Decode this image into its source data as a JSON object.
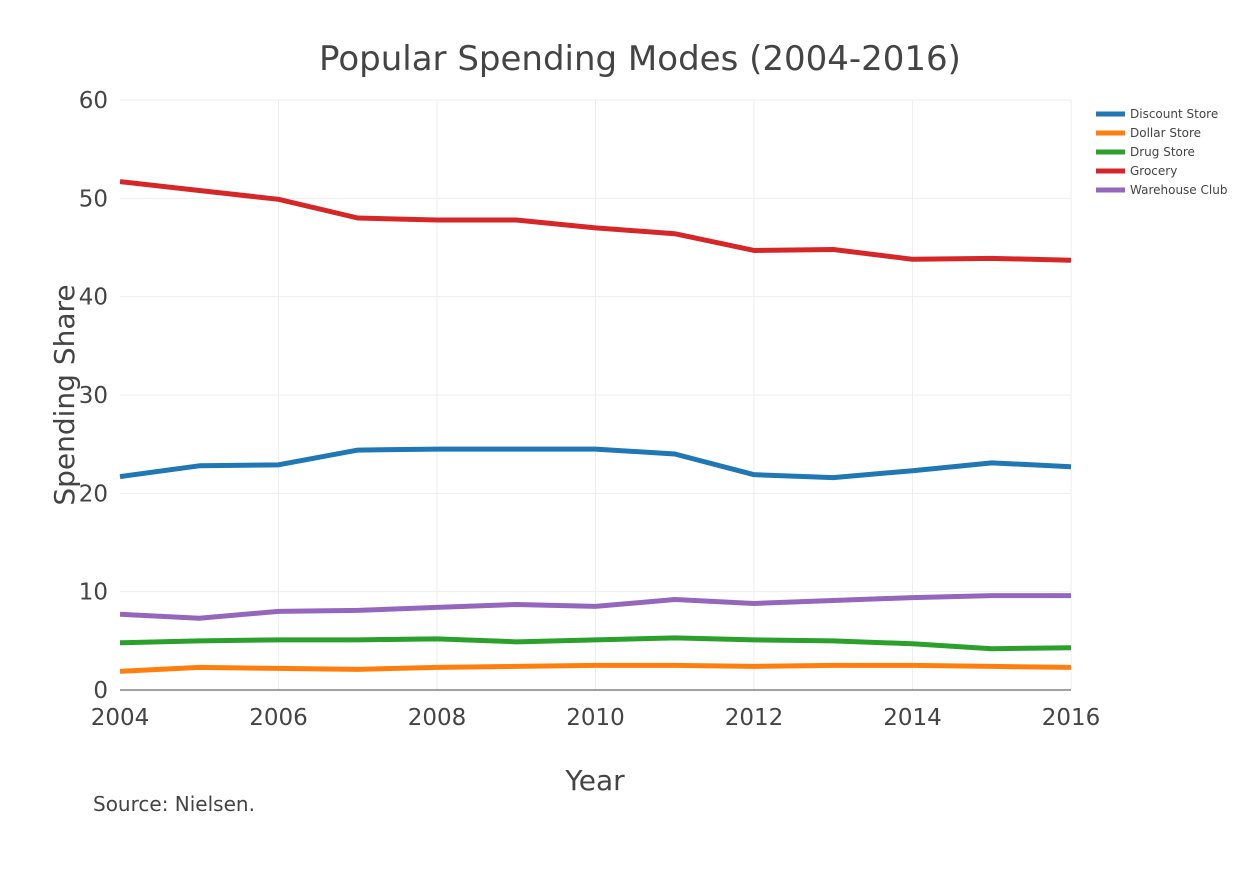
{
  "chart_data": {
    "type": "line",
    "title": "Popular Spending Modes (2004-2016)",
    "xlabel": "Year",
    "ylabel": "Spending Share",
    "source_note": "Source: Nielsen.",
    "xlim": [
      2004,
      2016
    ],
    "ylim": [
      0,
      60
    ],
    "x_ticks": [
      "2004",
      "2006",
      "2008",
      "2010",
      "2012",
      "2014",
      "2016"
    ],
    "y_ticks": [
      "0",
      "10",
      "20",
      "30",
      "40",
      "50",
      "60"
    ],
    "grid": true,
    "legend_position": "top-right",
    "x": [
      2004,
      2005,
      2006,
      2007,
      2008,
      2009,
      2010,
      2011,
      2012,
      2013,
      2014,
      2015,
      2016
    ],
    "series": [
      {
        "name": "Discount Store",
        "color": "#1f77b4",
        "values": [
          21.7,
          22.8,
          22.9,
          24.4,
          24.5,
          24.5,
          24.5,
          24.0,
          21.9,
          21.6,
          22.3,
          23.1,
          22.7
        ]
      },
      {
        "name": "Dollar Store",
        "color": "#ff7f0e",
        "values": [
          1.9,
          2.3,
          2.2,
          2.1,
          2.3,
          2.4,
          2.5,
          2.5,
          2.4,
          2.5,
          2.5,
          2.4,
          2.3
        ]
      },
      {
        "name": "Drug Store",
        "color": "#2ca02c",
        "values": [
          4.8,
          5.0,
          5.1,
          5.1,
          5.2,
          4.9,
          5.1,
          5.3,
          5.1,
          5.0,
          4.7,
          4.2,
          4.3
        ]
      },
      {
        "name": "Grocery",
        "color": "#d62728",
        "values": [
          51.7,
          50.8,
          49.9,
          48.0,
          47.8,
          47.8,
          47.0,
          46.4,
          44.7,
          44.8,
          43.8,
          43.9,
          43.7
        ]
      },
      {
        "name": "Warehouse Club",
        "color": "#9467bd",
        "values": [
          7.7,
          7.3,
          8.0,
          8.1,
          8.4,
          8.7,
          8.5,
          9.2,
          8.8,
          9.1,
          9.4,
          9.6,
          9.6
        ]
      }
    ]
  }
}
